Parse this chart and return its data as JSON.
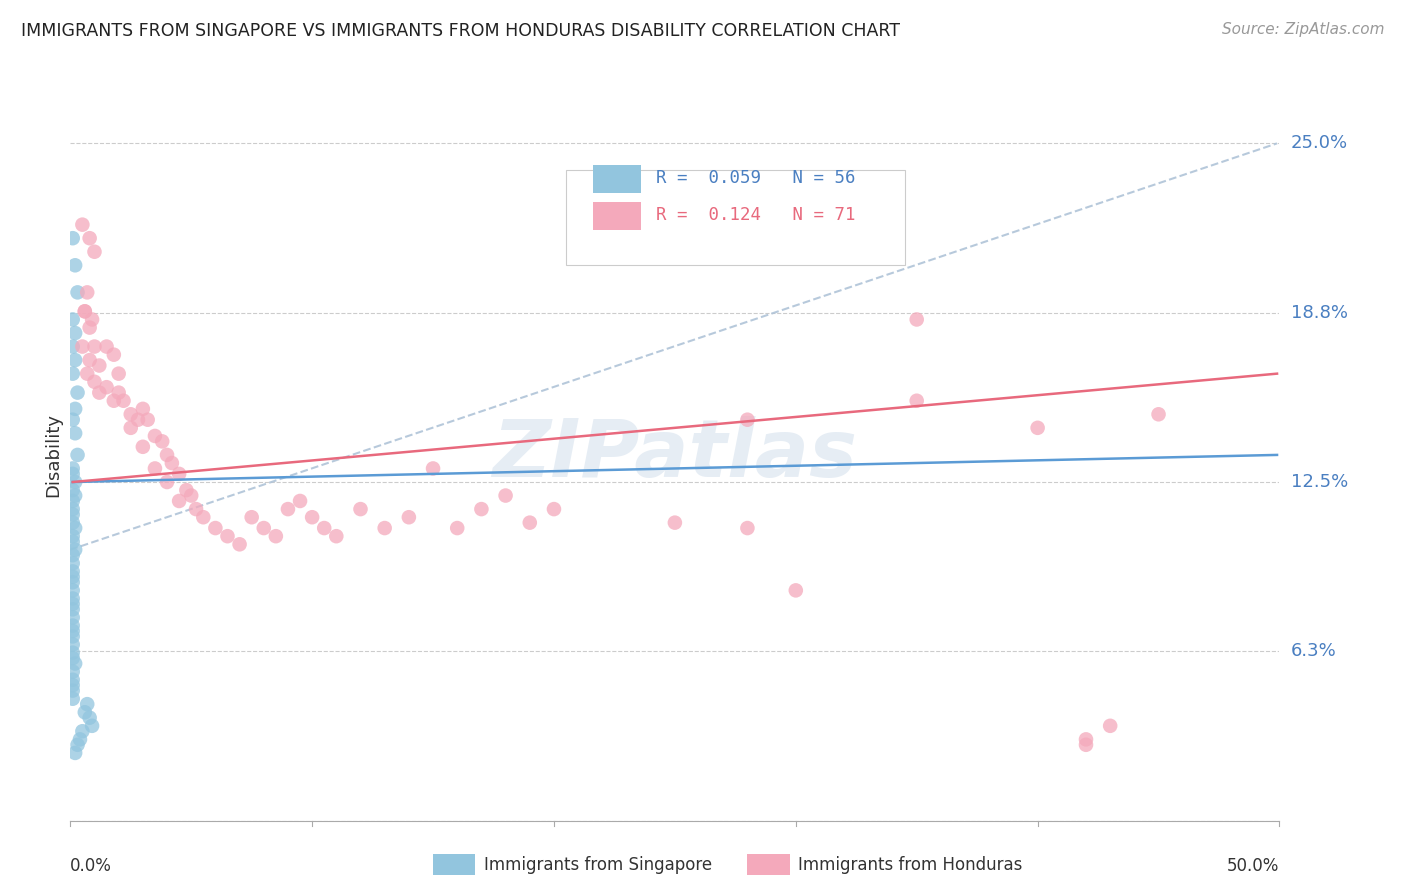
{
  "title": "IMMIGRANTS FROM SINGAPORE VS IMMIGRANTS FROM HONDURAS DISABILITY CORRELATION CHART",
  "source": "Source: ZipAtlas.com",
  "ylabel": "Disability",
  "ytick_vals": [
    0.0,
    0.0625,
    0.125,
    0.1875,
    0.25
  ],
  "ytick_labels": [
    "",
    "6.3%",
    "12.5%",
    "18.8%",
    "25.0%"
  ],
  "xlim": [
    0.0,
    0.5
  ],
  "ylim": [
    0.0,
    0.27
  ],
  "color_singapore": "#92c5de",
  "color_honduras": "#f4a9bb",
  "trendline_singapore_color": "#5b9bd5",
  "trendline_honduras_color": "#e8697d",
  "diagonal_color": "#b0c4d8",
  "watermark": "ZIPatlas",
  "sg_trendline": [
    0.001,
    0.125,
    0.499,
    0.135
  ],
  "hd_trendline": [
    0.001,
    0.125,
    0.499,
    0.165
  ],
  "diag_line": [
    0.0,
    0.1,
    0.499,
    0.25
  ],
  "sg_x": [
    0.001,
    0.002,
    0.003,
    0.001,
    0.002,
    0.001,
    0.002,
    0.001,
    0.003,
    0.002,
    0.001,
    0.002,
    0.003,
    0.001,
    0.001,
    0.002,
    0.001,
    0.002,
    0.001,
    0.001,
    0.001,
    0.001,
    0.002,
    0.001,
    0.001,
    0.002,
    0.001,
    0.001,
    0.001,
    0.001,
    0.001,
    0.001,
    0.001,
    0.001,
    0.001,
    0.001,
    0.001,
    0.001,
    0.001,
    0.001,
    0.001,
    0.001,
    0.002,
    0.001,
    0.001,
    0.001,
    0.001,
    0.001,
    0.007,
    0.006,
    0.008,
    0.009,
    0.005,
    0.004,
    0.003,
    0.002
  ],
  "sg_y": [
    0.215,
    0.205,
    0.195,
    0.185,
    0.18,
    0.175,
    0.17,
    0.165,
    0.158,
    0.152,
    0.148,
    0.143,
    0.135,
    0.13,
    0.128,
    0.125,
    0.122,
    0.12,
    0.118,
    0.115,
    0.113,
    0.11,
    0.108,
    0.105,
    0.103,
    0.1,
    0.098,
    0.095,
    0.092,
    0.09,
    0.088,
    0.085,
    0.082,
    0.08,
    0.078,
    0.075,
    0.072,
    0.07,
    0.068,
    0.065,
    0.062,
    0.06,
    0.058,
    0.055,
    0.052,
    0.05,
    0.048,
    0.045,
    0.043,
    0.04,
    0.038,
    0.035,
    0.033,
    0.03,
    0.028,
    0.025
  ],
  "hd_x": [
    0.005,
    0.008,
    0.01,
    0.007,
    0.006,
    0.009,
    0.005,
    0.008,
    0.007,
    0.01,
    0.012,
    0.006,
    0.008,
    0.01,
    0.012,
    0.015,
    0.018,
    0.02,
    0.015,
    0.018,
    0.02,
    0.025,
    0.022,
    0.028,
    0.03,
    0.025,
    0.032,
    0.035,
    0.03,
    0.038,
    0.04,
    0.035,
    0.042,
    0.045,
    0.04,
    0.048,
    0.05,
    0.045,
    0.052,
    0.055,
    0.06,
    0.065,
    0.07,
    0.075,
    0.08,
    0.085,
    0.09,
    0.095,
    0.1,
    0.105,
    0.11,
    0.12,
    0.13,
    0.14,
    0.15,
    0.16,
    0.17,
    0.18,
    0.19,
    0.2,
    0.25,
    0.28,
    0.3,
    0.35,
    0.42,
    0.43,
    0.42,
    0.28,
    0.35,
    0.4,
    0.45
  ],
  "hd_y": [
    0.22,
    0.215,
    0.21,
    0.195,
    0.188,
    0.185,
    0.175,
    0.17,
    0.165,
    0.162,
    0.158,
    0.188,
    0.182,
    0.175,
    0.168,
    0.175,
    0.172,
    0.165,
    0.16,
    0.155,
    0.158,
    0.15,
    0.155,
    0.148,
    0.152,
    0.145,
    0.148,
    0.142,
    0.138,
    0.14,
    0.135,
    0.13,
    0.132,
    0.128,
    0.125,
    0.122,
    0.12,
    0.118,
    0.115,
    0.112,
    0.108,
    0.105,
    0.102,
    0.112,
    0.108,
    0.105,
    0.115,
    0.118,
    0.112,
    0.108,
    0.105,
    0.115,
    0.108,
    0.112,
    0.13,
    0.108,
    0.115,
    0.12,
    0.11,
    0.115,
    0.11,
    0.108,
    0.085,
    0.185,
    0.03,
    0.035,
    0.028,
    0.148,
    0.155,
    0.145,
    0.15
  ]
}
